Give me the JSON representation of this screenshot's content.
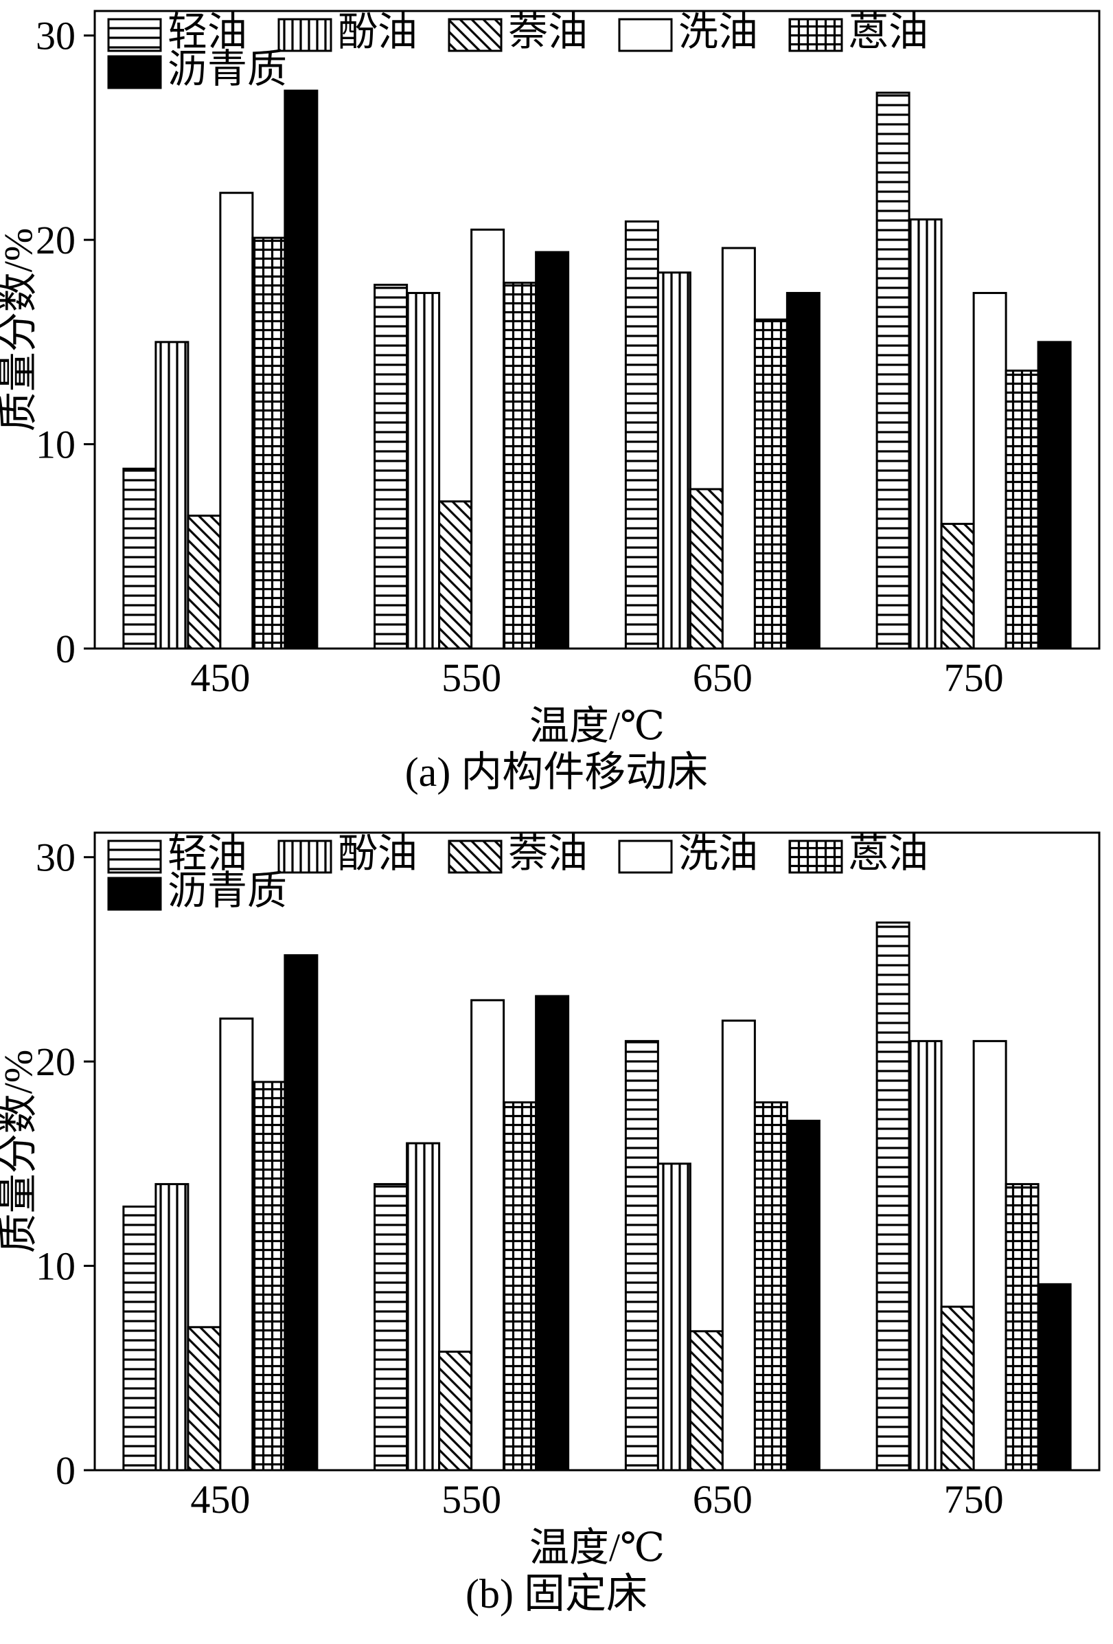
{
  "page": {
    "background": "#ffffff",
    "ink": "#000000"
  },
  "chart_data": [
    {
      "type": "bar",
      "title": "(a) 内构件移动床",
      "xlabel": "温度/℃",
      "ylabel": "质量分数/%",
      "yticks": [
        0,
        10,
        20,
        30
      ],
      "ylim": [
        0,
        31.2
      ],
      "grid": false,
      "legend_position": "top-left-inside, two rows",
      "categories": [
        "450",
        "550",
        "650",
        "750"
      ],
      "series": [
        {
          "name": "轻油",
          "key": "light-oil",
          "hatch": "horizontal-lines",
          "values": [
            8.8,
            17.8,
            20.9,
            27.2
          ]
        },
        {
          "name": "酚油",
          "key": "phenol-oil",
          "hatch": "vertical-lines",
          "values": [
            15.0,
            17.4,
            18.4,
            21.0
          ]
        },
        {
          "name": "萘油",
          "key": "naphthalene-oil",
          "hatch": "diagonal-lines",
          "values": [
            6.5,
            7.2,
            7.8,
            6.1
          ]
        },
        {
          "name": "洗油",
          "key": "wash-oil",
          "hatch": "open",
          "values": [
            22.3,
            20.5,
            19.6,
            17.4
          ]
        },
        {
          "name": "蒽油",
          "key": "anthracene-oil",
          "hatch": "crosshatch",
          "values": [
            20.1,
            17.9,
            16.1,
            13.6
          ]
        },
        {
          "name": "沥青质",
          "key": "asphaltene",
          "hatch": "solid",
          "values": [
            27.3,
            19.4,
            17.4,
            15.0
          ]
        }
      ]
    },
    {
      "type": "bar",
      "title": "(b) 固定床",
      "xlabel": "温度/℃",
      "ylabel": "质量分数/%",
      "yticks": [
        0,
        10,
        20,
        30
      ],
      "ylim": [
        0,
        31.2
      ],
      "grid": false,
      "legend_position": "top-left-inside, two rows",
      "categories": [
        "450",
        "550",
        "650",
        "750"
      ],
      "series": [
        {
          "name": "轻油",
          "key": "light-oil",
          "hatch": "horizontal-lines",
          "values": [
            12.9,
            14.0,
            21.0,
            26.8
          ]
        },
        {
          "name": "酚油",
          "key": "phenol-oil",
          "hatch": "vertical-lines",
          "values": [
            14.0,
            16.0,
            15.0,
            21.0
          ]
        },
        {
          "name": "萘油",
          "key": "naphthalene-oil",
          "hatch": "diagonal-lines",
          "values": [
            7.0,
            5.8,
            6.8,
            8.0
          ]
        },
        {
          "name": "洗油",
          "key": "wash-oil",
          "hatch": "open",
          "values": [
            22.1,
            23.0,
            22.0,
            21.0
          ]
        },
        {
          "name": "蒽油",
          "key": "anthracene-oil",
          "hatch": "crosshatch",
          "values": [
            19.0,
            18.0,
            18.0,
            14.0
          ]
        },
        {
          "name": "沥青质",
          "key": "asphaltene",
          "hatch": "solid",
          "values": [
            25.2,
            23.2,
            17.1,
            9.1
          ]
        }
      ]
    }
  ]
}
